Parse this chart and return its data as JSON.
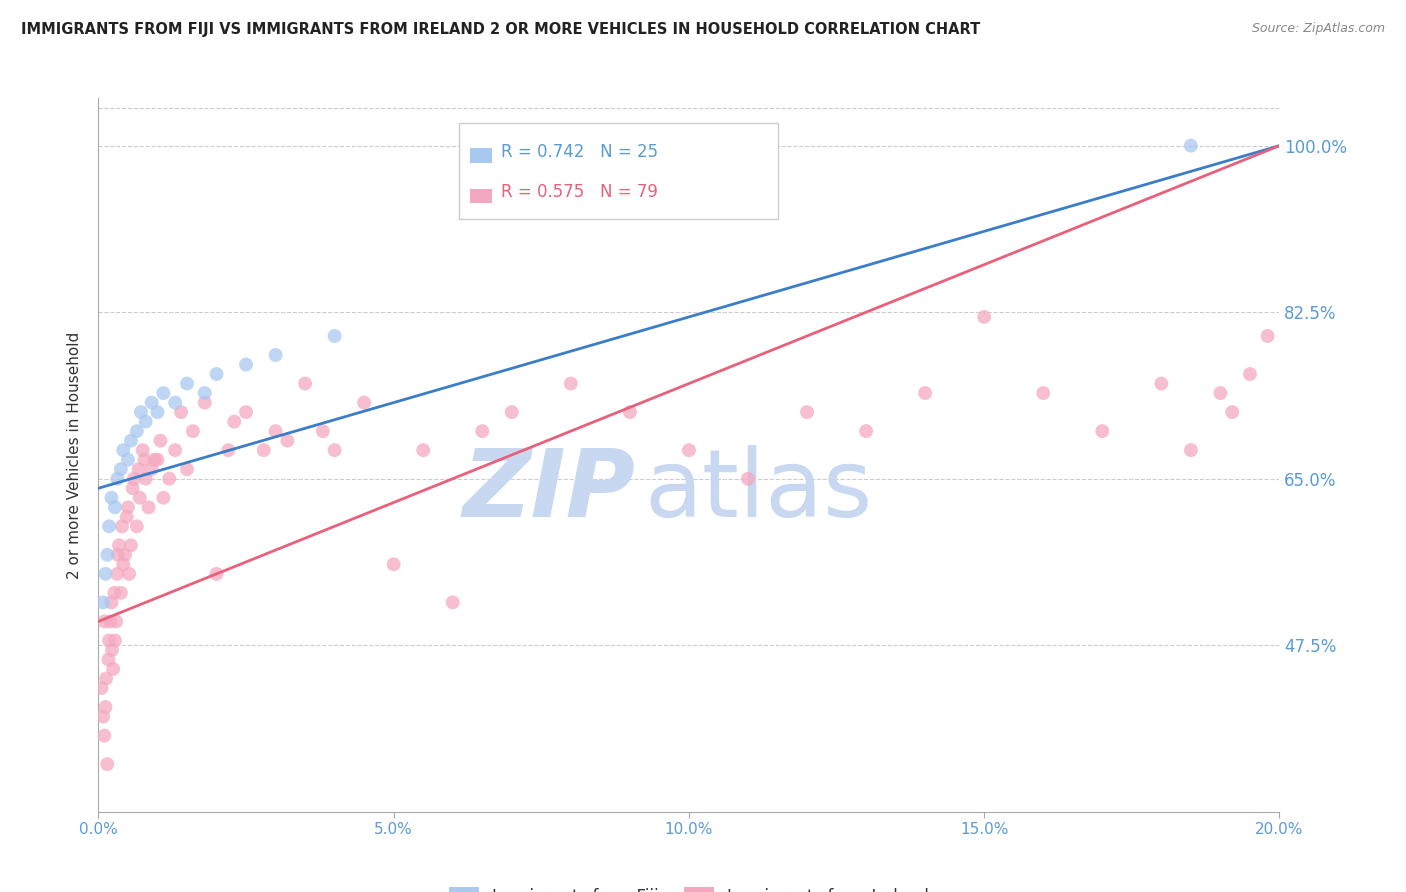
{
  "title": "IMMIGRANTS FROM FIJI VS IMMIGRANTS FROM IRELAND 2 OR MORE VEHICLES IN HOUSEHOLD CORRELATION CHART",
  "source": "Source: ZipAtlas.com",
  "ylabel": "2 or more Vehicles in Household",
  "fiji_label": "Immigrants from Fiji",
  "ireland_label": "Immigrants from Ireland",
  "fiji_R": 0.742,
  "fiji_N": 25,
  "ireland_R": 0.575,
  "ireland_N": 79,
  "xlim": [
    0.0,
    20.0
  ],
  "ylim": [
    30.0,
    105.0
  ],
  "yticks": [
    47.5,
    65.0,
    82.5,
    100.0
  ],
  "xticks": [
    0.0,
    5.0,
    10.0,
    15.0,
    20.0
  ],
  "fiji_color": "#A8C8F0",
  "ireland_color": "#F4A8C0",
  "fiji_line_color": "#3B7DC8",
  "ireland_line_color": "#E8607A",
  "watermark_zip_color": "#C8D8F0",
  "watermark_atlas_color": "#C8D8F0",
  "fiji_x": [
    0.08,
    0.12,
    0.15,
    0.18,
    0.22,
    0.28,
    0.32,
    0.38,
    0.42,
    0.5,
    0.55,
    0.65,
    0.72,
    0.8,
    0.9,
    1.0,
    1.1,
    1.3,
    1.5,
    1.8,
    2.0,
    2.5,
    3.0,
    4.0,
    18.5
  ],
  "fiji_y": [
    52,
    55,
    57,
    60,
    63,
    62,
    65,
    66,
    68,
    67,
    69,
    70,
    72,
    71,
    73,
    72,
    74,
    73,
    75,
    74,
    76,
    77,
    78,
    80,
    100
  ],
  "ireland_x": [
    0.05,
    0.08,
    0.1,
    0.12,
    0.15,
    0.18,
    0.2,
    0.22,
    0.25,
    0.28,
    0.3,
    0.32,
    0.35,
    0.38,
    0.4,
    0.42,
    0.45,
    0.5,
    0.52,
    0.55,
    0.6,
    0.65,
    0.7,
    0.75,
    0.8,
    0.85,
    0.9,
    1.0,
    1.1,
    1.2,
    1.3,
    1.4,
    1.5,
    1.6,
    1.8,
    2.0,
    2.2,
    2.5,
    2.8,
    3.0,
    3.5,
    3.8,
    4.0,
    4.5,
    5.0,
    5.5,
    6.0,
    6.5,
    7.0,
    8.0,
    9.0,
    10.0,
    11.0,
    12.0,
    13.0,
    14.0,
    15.0,
    16.0,
    17.0,
    18.0,
    18.5,
    19.0,
    19.2,
    19.5,
    19.8,
    0.1,
    0.13,
    0.17,
    0.23,
    0.27,
    0.33,
    0.48,
    0.58,
    0.68,
    0.78,
    0.95,
    1.05,
    2.3,
    3.2
  ],
  "ireland_y": [
    43,
    40,
    38,
    41,
    35,
    48,
    50,
    52,
    45,
    48,
    50,
    55,
    58,
    53,
    60,
    56,
    57,
    62,
    55,
    58,
    65,
    60,
    63,
    68,
    65,
    62,
    66,
    67,
    63,
    65,
    68,
    72,
    66,
    70,
    73,
    55,
    68,
    72,
    68,
    70,
    75,
    70,
    68,
    73,
    56,
    68,
    52,
    70,
    72,
    75,
    72,
    68,
    65,
    72,
    70,
    74,
    82,
    74,
    70,
    75,
    68,
    74,
    72,
    76,
    80,
    50,
    44,
    46,
    47,
    53,
    57,
    61,
    64,
    66,
    67,
    67,
    69,
    71,
    69
  ]
}
